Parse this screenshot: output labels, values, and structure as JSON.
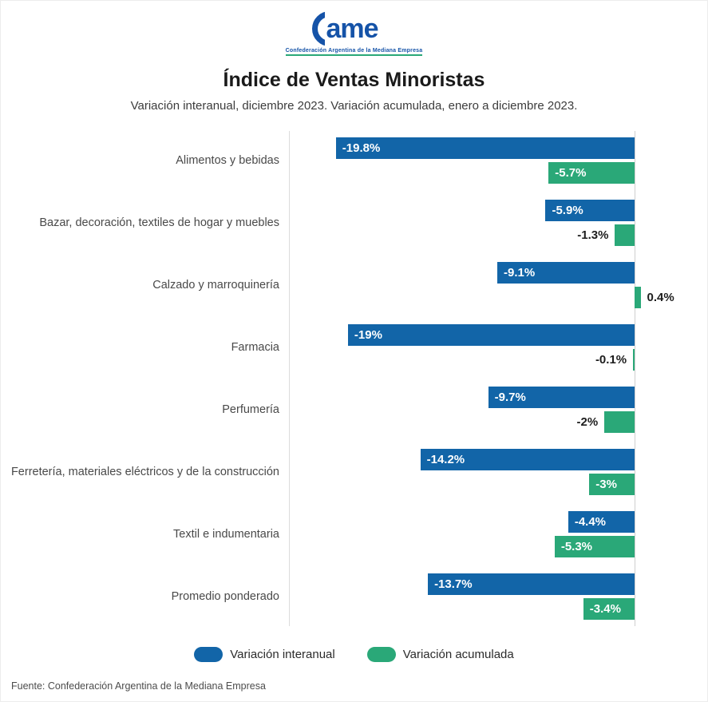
{
  "logo": {
    "brand": "ame",
    "subtitle": "Confederación Argentina de la Mediana Empresa"
  },
  "chart_data": {
    "type": "bar",
    "orientation": "horizontal",
    "title": "Índice de Ventas Minoristas",
    "subtitle": "Variación interanual, diciembre 2023. Variación acumulada, enero a diciembre 2023.",
    "source": "Fuente: Confederación Argentina de la Mediana Empresa",
    "unit": "%",
    "xlim": [
      -22,
      3
    ],
    "grid": false,
    "legend_position": "bottom",
    "categories": [
      "Alimentos y bebidas",
      "Bazar, decoración, textiles de hogar y muebles",
      "Calzado y marroquinería",
      "Farmacia",
      "Perfumería",
      "Ferretería, materiales eléctricos y de la construcción",
      "Textil e indumentaria",
      "Promedio ponderado"
    ],
    "series": [
      {
        "name": "Variación interanual",
        "color": "#1265a8",
        "values": [
          -19.8,
          -5.9,
          -9.1,
          -19,
          -9.7,
          -14.2,
          -4.4,
          -13.7
        ],
        "labels": [
          "-19.8%",
          "-5.9%",
          "-9.1%",
          "-19%",
          "-9.7%",
          "-14.2%",
          "-4.4%",
          "-13.7%"
        ]
      },
      {
        "name": "Variación acumulada",
        "color": "#2aa878",
        "values": [
          -5.7,
          -1.3,
          0.4,
          -0.1,
          -2,
          -3,
          -5.3,
          -3.4
        ],
        "labels": [
          "-5.7%",
          "-1.3%",
          "0.4%",
          "-0.1%",
          "-2%",
          "-3%",
          "-5.3%",
          "-3.4%"
        ]
      }
    ]
  }
}
